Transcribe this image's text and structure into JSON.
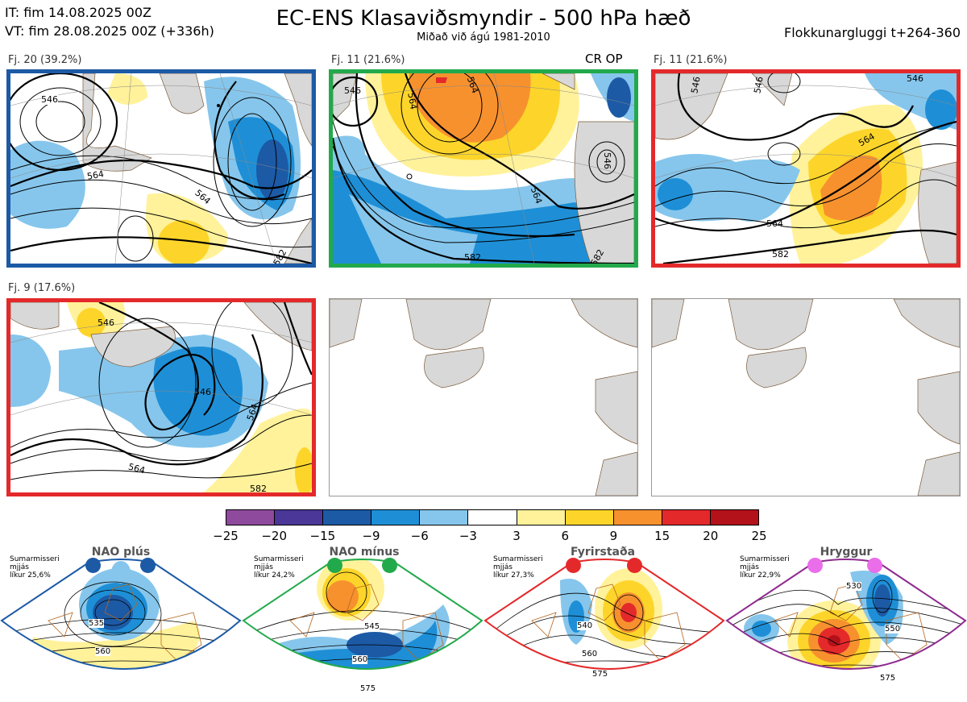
{
  "header": {
    "init_time": "IT: fim 14.08.2025 00Z",
    "valid_time": "VT: fim 28.08.2025 00Z  (+336h)",
    "title": "EC-ENS Klasaviðsmyndir - 500 hPa hæð",
    "subtitle": "Miðað við ágú 1981-2010",
    "window": "Flokkunargluggi t+264-360"
  },
  "panels": [
    {
      "label": "Fj. 20 (39.2%)",
      "border_color": "#1c5aa6",
      "contours": [
        "546",
        "564",
        "564",
        "582"
      ]
    },
    {
      "label": "Fj. 11 (21.6%)",
      "border_color": "#22a94b",
      "tag": "CR OP",
      "contours": [
        "546",
        "564",
        "564",
        "546",
        "564",
        "582",
        "582"
      ]
    },
    {
      "label": "Fj. 11 (21.6%)",
      "border_color": "#e4292b",
      "contours": [
        "546",
        "546",
        "546",
        "564",
        "564",
        "582"
      ]
    },
    {
      "label": "Fj. 9 (17.6%)",
      "border_color": "#e4292b",
      "contours": [
        "546",
        "546",
        "564",
        "564",
        "582"
      ]
    },
    {
      "label": "",
      "border_color": "",
      "empty": true
    },
    {
      "label": "",
      "border_color": "",
      "empty": true
    }
  ],
  "colorbar": {
    "colors": [
      "#8e4a9c",
      "#4a3797",
      "#1c5aa6",
      "#1e8fd6",
      "#86c6ec",
      "#ffffff",
      "#fff29a",
      "#fdd52a",
      "#f7912e",
      "#e4292b",
      "#b3121a"
    ],
    "ticks": [
      "−25",
      "−20",
      "−15",
      "−9",
      "−6",
      "−3",
      "3",
      "6",
      "9",
      "15",
      "20",
      "25"
    ]
  },
  "regimes": [
    {
      "name": "NAO plús",
      "info": "Sumarmisseri\nmjjás\nlíkur 25,6%",
      "color": "#1c5aa6",
      "contours": [
        "535",
        "560"
      ]
    },
    {
      "name": "NAO mínus",
      "info": "Sumarmisseri\nmjjás\nlíkur 24,2%",
      "color": "#22a94b",
      "contours": [
        "545",
        "560",
        "575"
      ]
    },
    {
      "name": "Fyrirstaða",
      "info": "Sumarmisseri\nmjjás\nlíkur 27,3%",
      "color": "#e4292b",
      "contours": [
        "540",
        "560",
        "575"
      ]
    },
    {
      "name": "Hryggur",
      "info": "Sumarmisseri\nmjjás\nlíkur 22,9%",
      "color": "#ea6de9",
      "border": "#8e2b8f",
      "contours": [
        "530",
        "550",
        "575"
      ]
    }
  ]
}
